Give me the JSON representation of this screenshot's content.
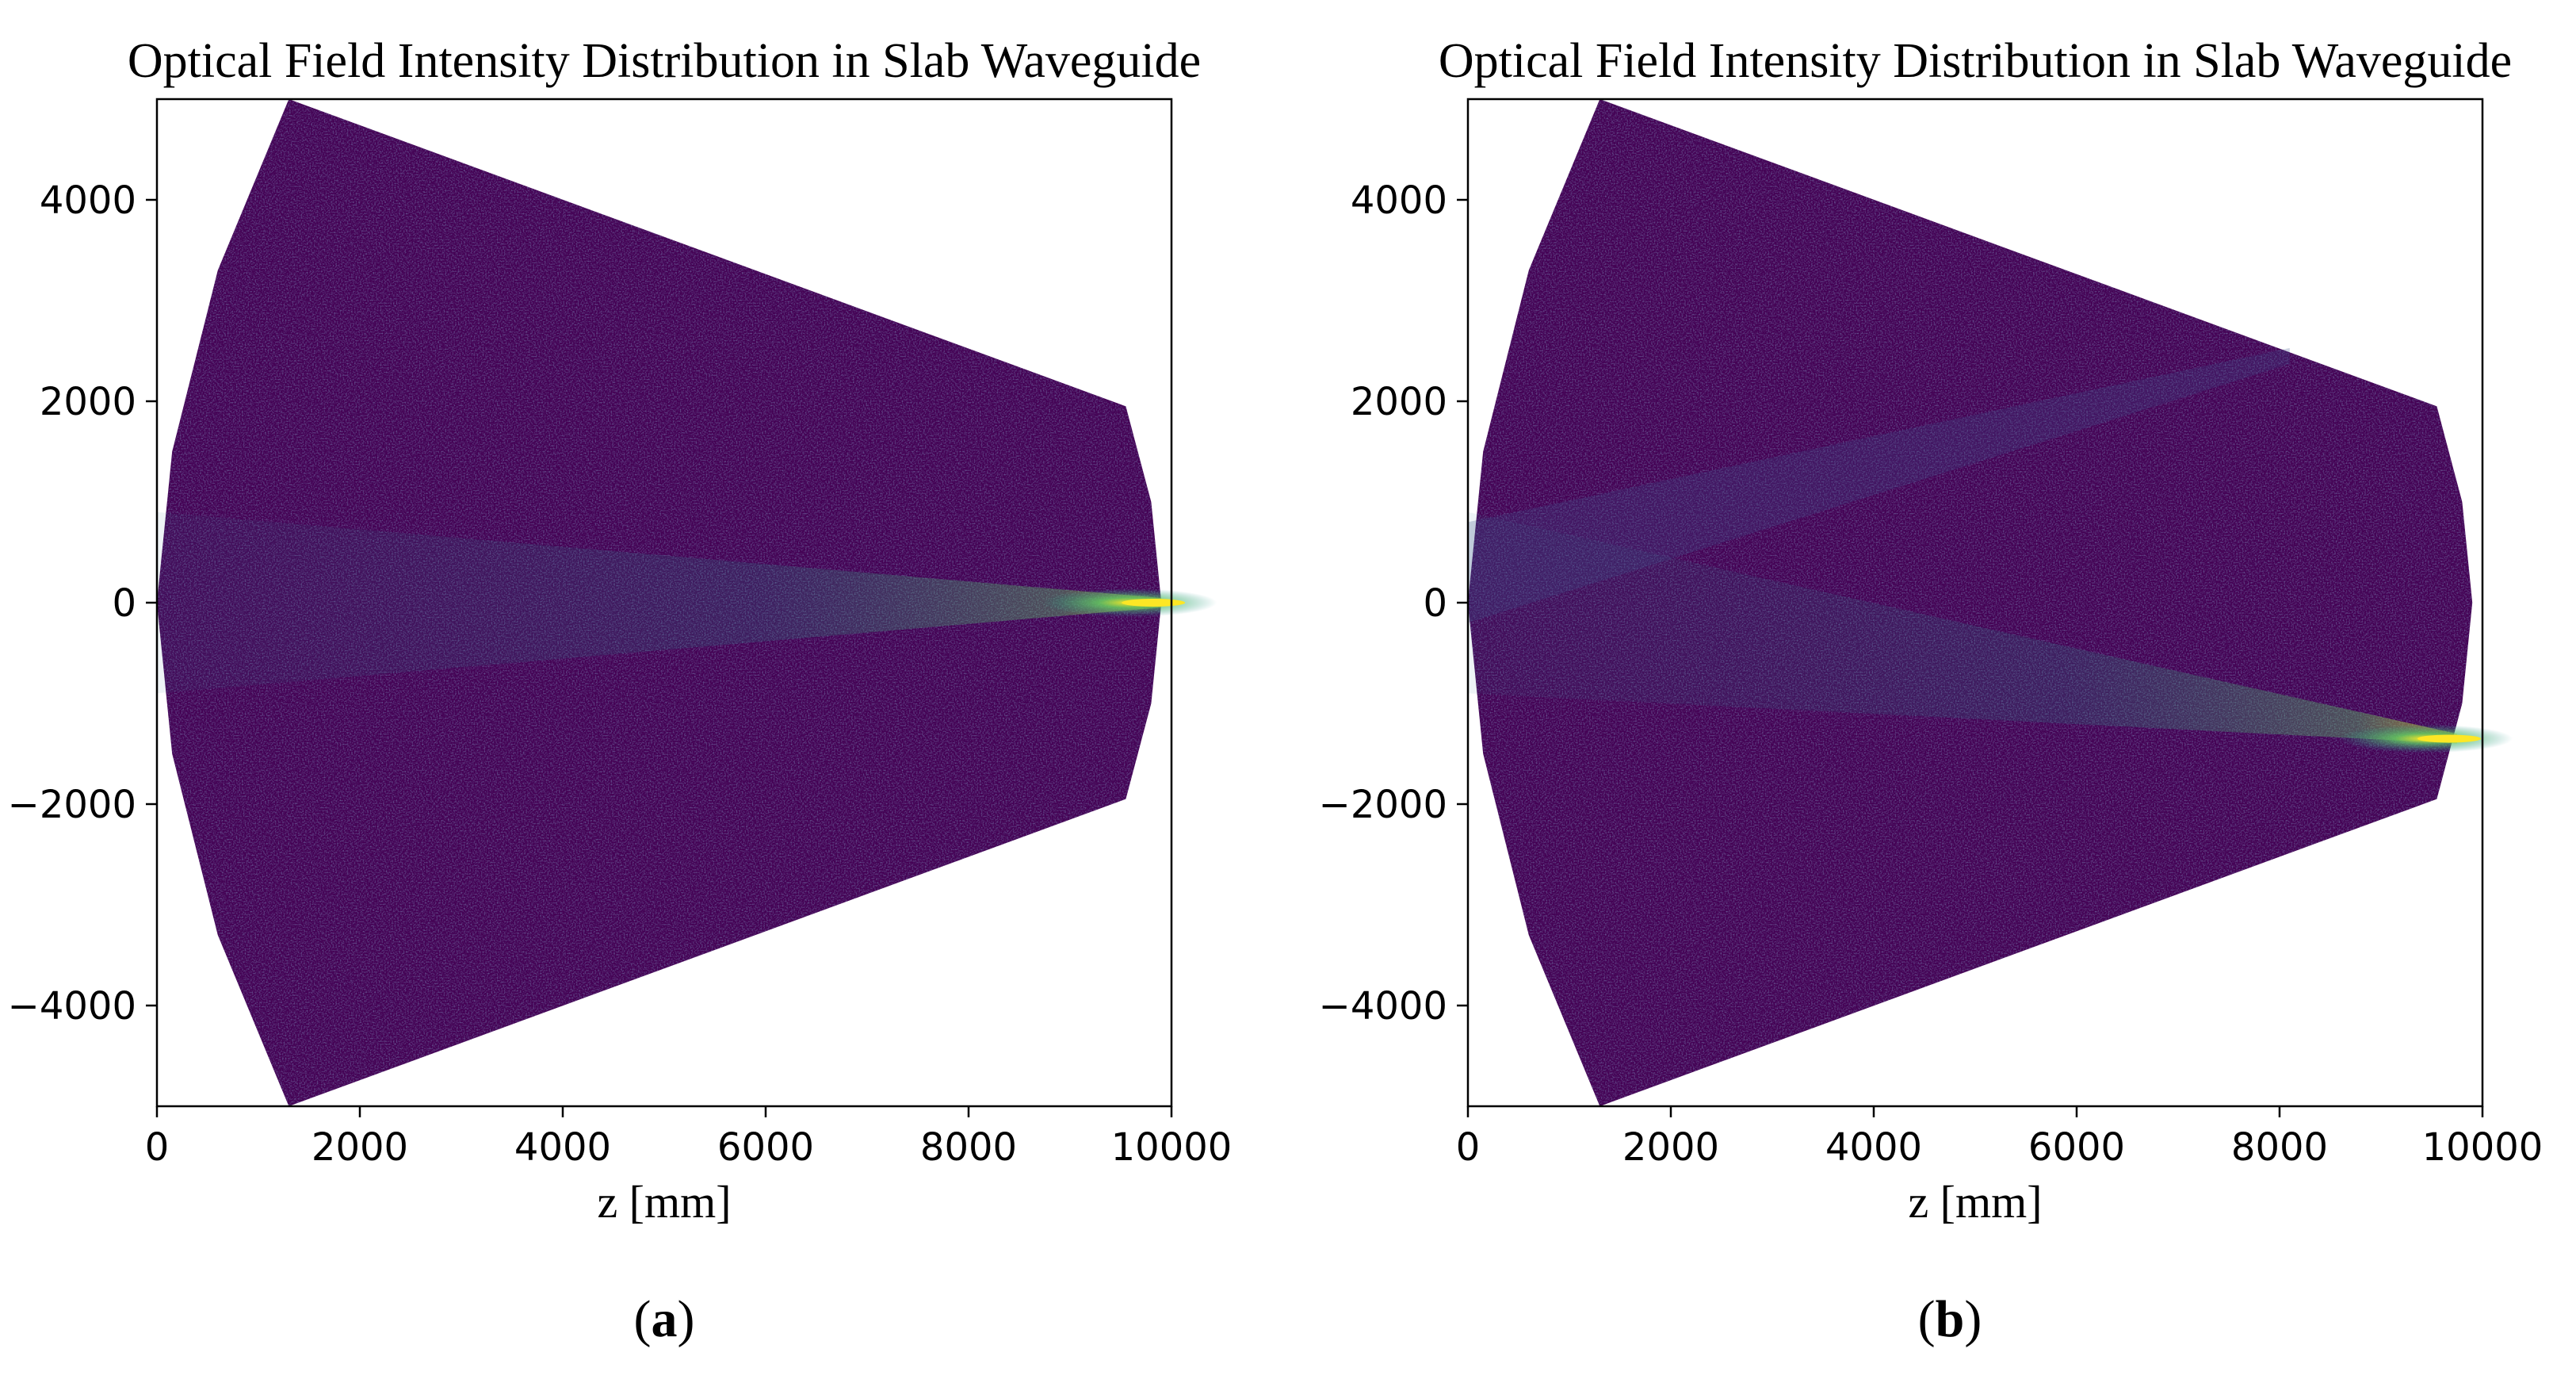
{
  "figure": {
    "colors": {
      "background_field": "#440154",
      "mid_field": "#3b528b",
      "teal": "#21918c",
      "green": "#5ec962",
      "yellow": "#fde725",
      "axes": "#000000"
    }
  },
  "chart_data": [
    {
      "type": "heatmap",
      "title": "Optical Field Intensity Distribution in Slab Waveguide",
      "xlabel": "z [mm]",
      "ylabel": "",
      "xlim": [
        0,
        10000
      ],
      "ylim": [
        -5000,
        5000
      ],
      "xticks": [
        0,
        2000,
        4000,
        6000,
        8000,
        10000
      ],
      "yticks": [
        4000,
        2000,
        0,
        -2000,
        -4000
      ],
      "xtick_labels": [
        "0",
        "2000",
        "4000",
        "6000",
        "8000",
        "10000"
      ],
      "ytick_labels": [
        "4000",
        "2000",
        "0",
        "−2000",
        "−4000"
      ],
      "colormap": "viridis",
      "field_region": {
        "left_arc": [
          [
            1300,
            5000
          ],
          [
            600,
            3300
          ],
          [
            150,
            1500
          ],
          [
            0,
            0
          ],
          [
            150,
            -1500
          ],
          [
            600,
            -3300
          ],
          [
            1300,
            -5000
          ]
        ],
        "right_arc": [
          [
            9550,
            1950
          ],
          [
            9800,
            1000
          ],
          [
            9900,
            0
          ],
          [
            9800,
            -1000
          ],
          [
            9550,
            -1950
          ]
        ]
      },
      "focus_point": [
        9900,
        0
      ],
      "caption_letter": "a",
      "caption_open": "(",
      "caption_close": ")"
    },
    {
      "type": "heatmap",
      "title": "Optical Field Intensity Distribution in Slab Waveguide",
      "xlabel": "z [mm]",
      "ylabel": "",
      "xlim": [
        0,
        10000
      ],
      "ylim": [
        -5000,
        5000
      ],
      "xticks": [
        0,
        2000,
        4000,
        6000,
        8000,
        10000
      ],
      "yticks": [
        4000,
        2000,
        0,
        -2000,
        -4000
      ],
      "xtick_labels": [
        "0",
        "2000",
        "4000",
        "6000",
        "8000",
        "10000"
      ],
      "ytick_labels": [
        "4000",
        "2000",
        "0",
        "−2000",
        "−4000"
      ],
      "colormap": "viridis",
      "field_region": {
        "left_arc": [
          [
            1300,
            5000
          ],
          [
            600,
            3300
          ],
          [
            150,
            1500
          ],
          [
            0,
            0
          ],
          [
            150,
            -1500
          ],
          [
            600,
            -3300
          ],
          [
            1300,
            -5000
          ]
        ],
        "right_arc": [
          [
            9550,
            1950
          ],
          [
            9800,
            1000
          ],
          [
            9900,
            0
          ],
          [
            9800,
            -1000
          ],
          [
            9550,
            -1950
          ]
        ]
      },
      "focus_point": [
        9750,
        -1350
      ],
      "secondary_beam_end": [
        8100,
        2450
      ],
      "caption_letter": "b",
      "caption_open": "(",
      "caption_close": ")"
    }
  ]
}
